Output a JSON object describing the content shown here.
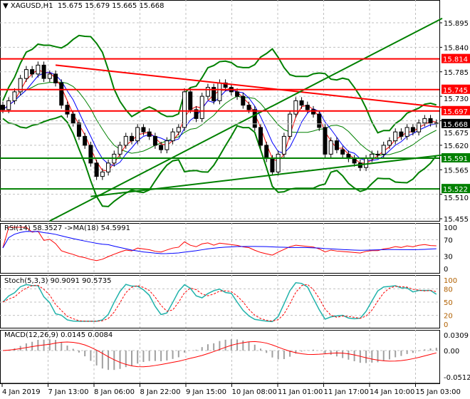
{
  "header": {
    "symbol": "XAGUSD,H1",
    "ohlc": "15.675 15.679 15.665 15.668"
  },
  "chart_data": [
    {
      "type": "candlestick",
      "name": "XAGUSD,H1",
      "closes": [
        15.7,
        15.72,
        15.74,
        15.77,
        15.79,
        15.78,
        15.8,
        15.77,
        15.78,
        15.76,
        15.71,
        15.69,
        15.67,
        15.64,
        15.62,
        15.58,
        15.55,
        15.56,
        15.58,
        15.6,
        15.62,
        15.64,
        15.63,
        15.66,
        15.65,
        15.64,
        15.62,
        15.61,
        15.63,
        15.65,
        15.66,
        15.74,
        15.7,
        15.68,
        15.73,
        15.75,
        15.72,
        15.76,
        15.75,
        15.74,
        15.73,
        15.71,
        15.7,
        15.66,
        15.62,
        15.59,
        15.56,
        15.6,
        15.64,
        15.69,
        15.72,
        15.71,
        15.7,
        15.69,
        15.66,
        15.6,
        15.63,
        15.61,
        15.6,
        15.59,
        15.58,
        15.57,
        15.59,
        15.6,
        15.6,
        15.62,
        15.63,
        15.65,
        15.64,
        15.66,
        15.65,
        15.67,
        15.68,
        15.67,
        15.668
      ],
      "price_ticks": [
        "15.895",
        "15.840",
        "15.785",
        "15.730",
        "15.675",
        "15.620",
        "15.565",
        "15.510",
        "15.455"
      ],
      "ylim": [
        15.44,
        15.92
      ],
      "levels": [
        {
          "price": 15.814,
          "label": "15.814",
          "color": "#ff0000"
        },
        {
          "price": 15.745,
          "label": "15.745",
          "color": "#ff0000"
        },
        {
          "price": 15.697,
          "label": "15.697",
          "color": "#ff0000"
        },
        {
          "price": 15.591,
          "label": "15.591",
          "color": "#008000"
        },
        {
          "price": 15.522,
          "label": "15.522",
          "color": "#008000"
        }
      ],
      "current": {
        "price": 15.668,
        "label": "15.668"
      },
      "trendlines": [
        {
          "from": [
            9,
            15.8
          ],
          "to": [
            75,
            15.705
          ],
          "color": "#ff0000"
        },
        {
          "from": [
            8,
            15.45
          ],
          "to": [
            75,
            15.905
          ],
          "color": "#008000"
        },
        {
          "from": [
            15,
            15.505
          ],
          "to": [
            75,
            15.598
          ],
          "color": "#008000"
        }
      ],
      "time_labels": [
        "4 Jan 2019",
        "7 Jan 13:00",
        "8 Jan 06:00",
        "8 Jan 22:00",
        "9 Jan 15:00",
        "10 Jan 08:00",
        "11 Jan 01:00",
        "11 Jan 17:00",
        "14 Jan 10:00",
        "15 Jan 03:00"
      ]
    },
    {
      "type": "line",
      "name": "RSI(14) 58.3527  ->MA(18) 54.5991",
      "ticks": [
        "100",
        "70",
        "30",
        "0"
      ],
      "ylim": [
        0,
        100
      ]
    },
    {
      "type": "line",
      "name": "Stoch(5,3,3) 90.9091 90.5735",
      "ticks": [
        "100",
        "80",
        "50",
        "20",
        "0"
      ],
      "ylim": [
        0,
        100
      ]
    },
    {
      "type": "bar",
      "name": "MACD(12,26,9) 0.0145 0.0084",
      "ticks": [
        "0.0309",
        "0.00",
        "-0.0512"
      ],
      "ylim": [
        -0.0512,
        0.0309
      ]
    }
  ]
}
